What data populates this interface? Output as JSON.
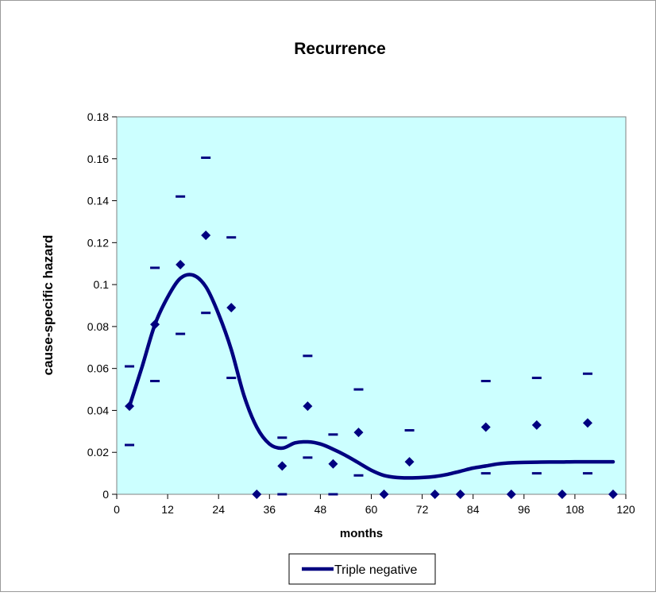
{
  "chart_data": {
    "type": "scatter",
    "title": "Recurrence",
    "xlabel": "months",
    "ylabel": "cause-specific hazard",
    "xlim": [
      0,
      120
    ],
    "ylim": [
      0,
      0.18
    ],
    "x_ticks": [
      0,
      12,
      24,
      36,
      48,
      60,
      72,
      84,
      96,
      108,
      120
    ],
    "y_ticks": [
      0,
      0.02,
      0.04,
      0.06,
      0.08,
      0.1,
      0.12,
      0.14,
      0.16,
      0.18
    ],
    "y_tick_labels": [
      "0",
      "0.02",
      "0.04",
      "0.06",
      "0.08",
      "0.1",
      "0.12",
      "0.14",
      "0.16",
      "0.18"
    ],
    "grid": false,
    "legend_position": "bottom",
    "plot_background": "#ccffff",
    "series_color": "#000080",
    "observed_points": {
      "x": [
        3,
        9,
        15,
        21,
        27,
        33,
        39,
        45,
        51,
        57,
        63,
        69,
        75,
        81,
        87,
        93,
        99,
        105,
        111,
        117
      ],
      "y": [
        0.042,
        0.081,
        0.1095,
        0.1235,
        0.089,
        0.0,
        0.0135,
        0.042,
        0.0145,
        0.0295,
        0.0,
        0.0155,
        0.0,
        0.0,
        0.032,
        0.0,
        0.033,
        0.0,
        0.034,
        0.0
      ]
    },
    "upper_bounds": {
      "x": [
        3,
        9,
        15,
        21,
        27,
        39,
        45,
        51,
        57,
        69,
        87,
        99,
        111
      ],
      "y": [
        0.061,
        0.108,
        0.142,
        0.1605,
        0.1225,
        0.027,
        0.066,
        0.0285,
        0.05,
        0.0305,
        0.054,
        0.0555,
        0.0575
      ]
    },
    "lower_bounds": {
      "x": [
        3,
        9,
        15,
        21,
        27,
        39,
        45,
        51,
        57,
        87,
        99,
        111
      ],
      "y": [
        0.0235,
        0.054,
        0.0765,
        0.0865,
        0.0555,
        0.0,
        0.0175,
        0.0,
        0.009,
        0.01,
        0.01,
        0.01
      ]
    },
    "series": [
      {
        "name": "Triple negative",
        "type": "line",
        "x": [
          3,
          6,
          9,
          12,
          15,
          18,
          21,
          24,
          27,
          30,
          33,
          36,
          39,
          42,
          45,
          48,
          51,
          54,
          57,
          60,
          63,
          66,
          69,
          72,
          75,
          78,
          81,
          84,
          87,
          90,
          93,
          96,
          99,
          102,
          105,
          108,
          111,
          114,
          117
        ],
        "y": [
          0.042,
          0.061,
          0.081,
          0.094,
          0.103,
          0.1045,
          0.099,
          0.086,
          0.069,
          0.047,
          0.032,
          0.024,
          0.022,
          0.0245,
          0.025,
          0.024,
          0.0215,
          0.0185,
          0.015,
          0.0115,
          0.009,
          0.008,
          0.0078,
          0.008,
          0.0085,
          0.0095,
          0.011,
          0.0125,
          0.0135,
          0.0145,
          0.015,
          0.0152,
          0.0153,
          0.0154,
          0.0154,
          0.0155,
          0.0155,
          0.0155,
          0.0155
        ]
      }
    ]
  }
}
